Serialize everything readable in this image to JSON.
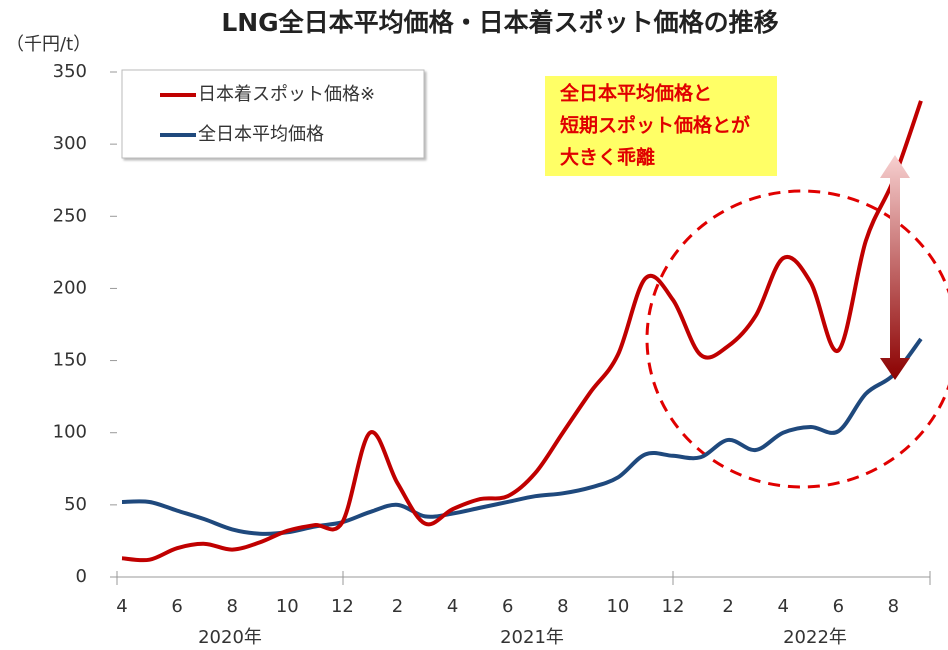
{
  "chart_data": {
    "type": "line",
    "title": "LNG全日本平均価格・日本着スポット価格の推移",
    "y_axis_label": "（千円/t）",
    "categories": [
      "4",
      null,
      "6",
      null,
      "8",
      null,
      "10",
      null,
      "12",
      null,
      "2",
      null,
      "4",
      null,
      "6",
      null,
      "8",
      null,
      "10",
      null,
      "12",
      null,
      "2",
      null,
      "4",
      null,
      "6",
      null,
      "8",
      null
    ],
    "year_labels": [
      "2020年",
      "2021年",
      "2022年"
    ],
    "series": [
      {
        "name": "日本着スポット価格※",
        "color": "#c00000",
        "values": [
          13,
          12,
          20,
          23,
          19,
          24,
          32,
          36,
          38,
          100,
          65,
          37,
          47,
          54,
          56,
          72,
          100,
          128,
          154,
          207,
          192,
          154,
          160,
          181,
          221,
          204,
          157,
          233,
          275,
          330
        ]
      },
      {
        "name": "全日本平均価格",
        "color": "#1f497d",
        "values": [
          52,
          52,
          46,
          40,
          33,
          30,
          31,
          35,
          38,
          45,
          50,
          42,
          44,
          48,
          52,
          56,
          58,
          62,
          69,
          85,
          84,
          83,
          95,
          88,
          100,
          104,
          101,
          127,
          140,
          165
        ]
      }
    ],
    "ylim": [
      0,
      350
    ],
    "yticks": [
      0,
      50,
      100,
      150,
      200,
      250,
      300,
      350
    ],
    "annotation": [
      "全日本平均価格と",
      "短期スポット価格とが",
      "大きく乖離"
    ],
    "grid": false
  }
}
